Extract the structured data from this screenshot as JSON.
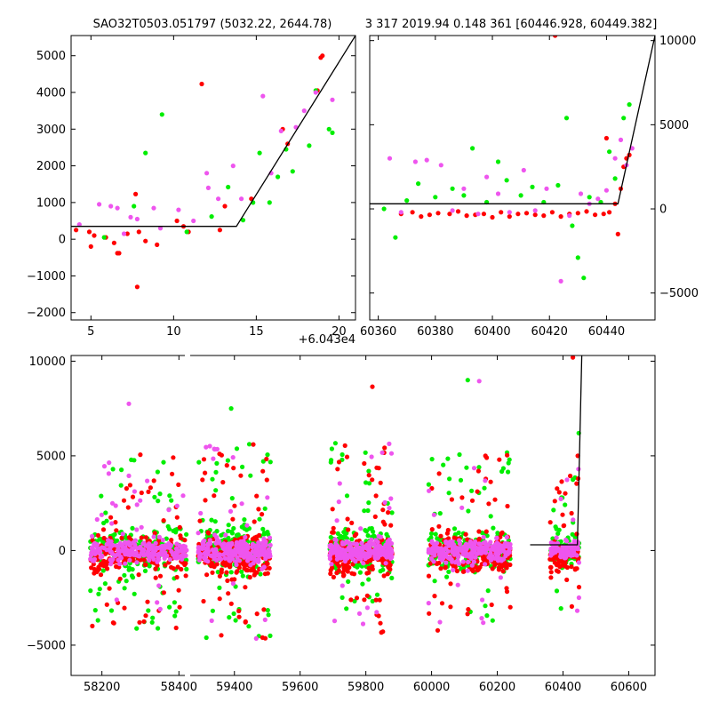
{
  "chart_data": [
    {
      "type": "scatter",
      "panel": "top-left",
      "title": "SAO32T0503.051797 (5032.22, 2644.78)",
      "offset_label": "+6.043e4",
      "xlim": [
        3.8,
        21.0
      ],
      "ylim": [
        -2200,
        5550
      ],
      "xticks": [
        5,
        10,
        15,
        20
      ],
      "yticks": [
        -2000,
        -1000,
        0,
        1000,
        2000,
        3000,
        4000,
        5000
      ],
      "tick_labels_y": [
        "−2000",
        "−1000",
        "0",
        "1000",
        "2000",
        "3000",
        "4000",
        "5000"
      ],
      "colors": {
        "red": "#ff0000",
        "green": "#00ee00",
        "magenta": "#ee55ee"
      },
      "fit_line": {
        "x": [
          3.8,
          13.8,
          21.0
        ],
        "y": [
          350,
          350,
          5550
        ]
      },
      "series": [
        {
          "color": "red",
          "x": [
            4.1,
            4.9,
            5.0,
            5.2,
            5.9,
            6.4,
            6.6,
            7.2,
            7.7,
            7.9,
            8.3,
            9.0,
            10.2,
            10.6,
            10.9,
            11.7,
            12.8,
            13.1,
            14.7,
            16.6,
            16.9,
            18.7,
            18.9,
            19.0,
            7.8,
            6.7
          ],
          "y": [
            250,
            200,
            -200,
            100,
            50,
            -100,
            -380,
            150,
            1230,
            200,
            -50,
            -150,
            500,
            350,
            200,
            4230,
            250,
            900,
            1100,
            3000,
            2600,
            4050,
            4950,
            5000,
            -1300,
            -380
          ]
        },
        {
          "color": "green",
          "x": [
            5.8,
            7.6,
            8.3,
            9.3,
            10.8,
            12.3,
            13.3,
            14.2,
            14.8,
            15.2,
            15.8,
            16.3,
            16.8,
            17.2,
            18.2,
            19.4,
            19.6,
            18.6
          ],
          "y": [
            50,
            900,
            2350,
            3400,
            200,
            620,
            1420,
            520,
            1000,
            2350,
            1000,
            1700,
            2450,
            1850,
            2550,
            3000,
            2900,
            4050
          ]
        },
        {
          "color": "magenta",
          "x": [
            4.3,
            5.5,
            6.2,
            6.6,
            7.0,
            7.4,
            7.8,
            8.8,
            9.2,
            10.3,
            11.2,
            12.1,
            12.7,
            13.6,
            14.1,
            15.4,
            15.9,
            16.5,
            17.4,
            17.9,
            18.6,
            19.6,
            12.0
          ],
          "y": [
            400,
            950,
            900,
            850,
            150,
            600,
            550,
            850,
            300,
            800,
            500,
            1400,
            1100,
            2000,
            1100,
            3900,
            1800,
            2950,
            3050,
            3500,
            4000,
            3800,
            1800
          ]
        }
      ]
    },
    {
      "type": "scatter",
      "panel": "top-right",
      "title": "3 317 2019.94 0.148 361 [60446.928, 60449.382]",
      "xlim": [
        60357,
        60457
      ],
      "ylim": [
        -6600,
        10300
      ],
      "xticks": [
        60360,
        60380,
        60400,
        60420,
        60440
      ],
      "yticks": [
        -5000,
        0,
        5000,
        10000
      ],
      "tick_labels_y": [
        "−5000",
        "0",
        "5000",
        "10000"
      ],
      "fit_line": {
        "x": [
          60357,
          60444,
          60457
        ],
        "y": [
          300,
          300,
          10300
        ]
      },
      "series": [
        {
          "color": "red",
          "x": [
            60368,
            60372,
            60375,
            60378,
            60381,
            60385,
            60388,
            60391,
            60394,
            60397,
            60400,
            60403,
            60406,
            60409,
            60412,
            60415,
            60418,
            60421,
            60424,
            60427,
            60430,
            60433,
            60436,
            60439,
            60441,
            60443,
            60445,
            60446,
            60447,
            60448,
            60422,
            60440,
            60444
          ],
          "y": [
            -300,
            -200,
            -450,
            -350,
            -250,
            -300,
            -150,
            -400,
            -350,
            -300,
            -500,
            -200,
            -450,
            -300,
            -250,
            -350,
            -400,
            -200,
            -450,
            -300,
            -250,
            -150,
            -350,
            -300,
            -200,
            300,
            1200,
            2500,
            3000,
            3200,
            10300,
            4200,
            -1500
          ]
        },
        {
          "color": "green",
          "x": [
            60362,
            60366,
            60370,
            60374,
            60380,
            60386,
            60390,
            60393,
            60398,
            60402,
            60405,
            60410,
            60414,
            60418,
            60423,
            60426,
            60428,
            60430,
            60432,
            60434,
            60438,
            60441,
            60443,
            60446,
            60448
          ],
          "y": [
            0,
            -1700,
            500,
            1500,
            700,
            1200,
            800,
            3600,
            400,
            2800,
            1700,
            800,
            1300,
            400,
            1400,
            5400,
            -1000,
            -2900,
            -4100,
            700,
            400,
            3400,
            1800,
            5400,
            6200
          ]
        },
        {
          "color": "magenta",
          "x": [
            60364,
            60368,
            60373,
            60377,
            60382,
            60386,
            60390,
            60395,
            60398,
            60402,
            60406,
            60411,
            60415,
            60419,
            60424,
            60427,
            60431,
            60434,
            60437,
            60440,
            60443,
            60445,
            60447,
            60449
          ],
          "y": [
            3000,
            -200,
            2800,
            2900,
            2600,
            -100,
            1200,
            -300,
            1900,
            900,
            -200,
            2300,
            -100,
            1200,
            -4300,
            -400,
            900,
            300,
            600,
            1100,
            3000,
            4100,
            2600,
            3600
          ]
        }
      ]
    },
    {
      "type": "scatter",
      "panel": "bottom",
      "xlim": [
        58120,
        60680
      ],
      "ylim": [
        -6600,
        10300
      ],
      "xticks": [
        58200,
        58400,
        59400,
        59600,
        59800,
        60000,
        60200,
        60400,
        60600
      ],
      "yticks": [
        -5000,
        0,
        5000,
        10000
      ],
      "tick_labels_y": [
        "−5000",
        "0",
        "5000",
        "10000"
      ],
      "axis_break": {
        "after": 58400,
        "before": 59260
      },
      "fit_line": {
        "x": [
          60300,
          60444,
          60457
        ],
        "y": [
          300,
          300,
          10300
        ]
      },
      "seasons": [
        {
          "x_range": [
            58170,
            58420
          ],
          "spread": 1100,
          "count": 220,
          "outlier_span": 5800
        },
        {
          "x_range": [
            59290,
            59510
          ],
          "spread": 1200,
          "count": 240,
          "outlier_span": 6500
        },
        {
          "x_range": [
            59690,
            59880
          ],
          "spread": 1100,
          "count": 220,
          "outlier_span": 6500
        },
        {
          "x_range": [
            59990,
            60240
          ],
          "spread": 1100,
          "count": 230,
          "outlier_span": 6000
        },
        {
          "x_range": [
            60360,
            60450
          ],
          "spread": 800,
          "count": 90,
          "outlier_span": 4500
        }
      ],
      "highlights": [
        {
          "color": "red",
          "x": 60430,
          "y": 10200
        },
        {
          "color": "red",
          "x": 59820,
          "y": 8650
        },
        {
          "color": "green",
          "x": 60110,
          "y": 9000
        },
        {
          "color": "magenta",
          "x": 58270,
          "y": 7750
        },
        {
          "color": "green",
          "x": 59390,
          "y": 7500
        },
        {
          "color": "magenta",
          "x": 60145,
          "y": 8950
        },
        {
          "color": "green",
          "x": 60448,
          "y": 6200
        },
        {
          "color": "red",
          "x": 60445,
          "y": 5000
        },
        {
          "color": "magenta",
          "x": 60447,
          "y": 4300
        },
        {
          "color": "red",
          "x": 60446,
          "y": 3800
        }
      ]
    }
  ]
}
